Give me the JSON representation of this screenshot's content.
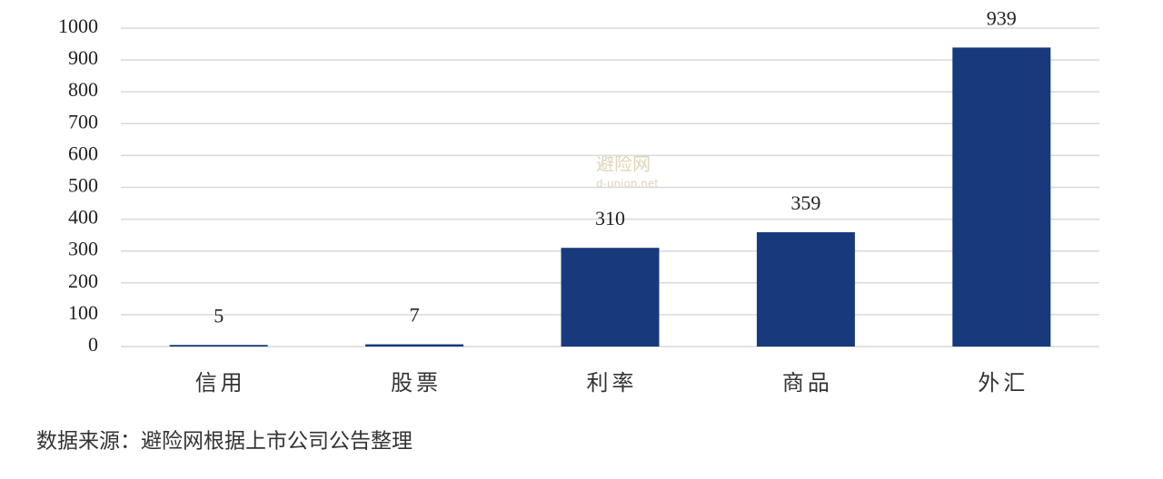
{
  "chart_data": {
    "type": "bar",
    "categories": [
      "信用",
      "股票",
      "利率",
      "商品",
      "外汇"
    ],
    "values": [
      5,
      7,
      310,
      359,
      939
    ],
    "color": "#163a7c",
    "ylim": [
      0,
      1000
    ],
    "yticks": [
      0,
      100,
      200,
      300,
      400,
      500,
      600,
      700,
      800,
      900,
      1000
    ],
    "grid": true,
    "watermark": [
      "避险网",
      "d-union.net"
    ],
    "source": "数据来源：避险网根据上市公司公告整理"
  }
}
